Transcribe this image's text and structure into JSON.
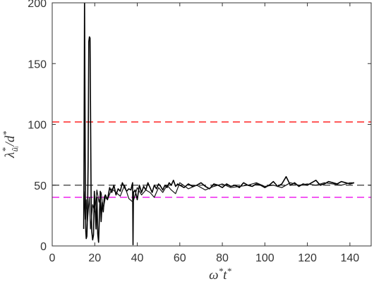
{
  "chart_data": {
    "type": "line",
    "xlabel_main": "ω",
    "xlabel_sup1": "*",
    "xlabel_mid": "t",
    "xlabel_sup2": "*",
    "ylabel_main": "λ",
    "ylabel_sub": "ũᵢ",
    "ylabel_sup": "*",
    "ylabel_rest": "/d",
    "ylabel_sup2": "*",
    "xlim": [
      0,
      150
    ],
    "ylim": [
      0,
      200
    ],
    "xticks": [
      0,
      20,
      40,
      60,
      80,
      100,
      120,
      140
    ],
    "yticks": [
      0,
      50,
      100,
      150,
      200
    ],
    "grid": false,
    "reference_lines": [
      {
        "y": 102,
        "color": "#ff3333",
        "style": "dashed"
      },
      {
        "y": 50,
        "color": "#555555",
        "style": "dashed"
      },
      {
        "y": 40,
        "color": "#ee22ee",
        "style": "dashed"
      }
    ],
    "series": [
      {
        "color": "#000000",
        "x": [
          14.8,
          15.0,
          15.2,
          15.4,
          15.6,
          15.8,
          16.0,
          16.3,
          16.6,
          16.9,
          17.2,
          17.5,
          17.8,
          18.0,
          18.3,
          18.6,
          19.0,
          19.4,
          19.8,
          20.2,
          20.6,
          21.0,
          21.4,
          21.8,
          22.2,
          22.6,
          23.0,
          23.5,
          24.0,
          24.5,
          25.0,
          26.0,
          27.0,
          28.0,
          29.0,
          30.0,
          31.0,
          32.0,
          33.0,
          34.0,
          35.0,
          36.0,
          37.0,
          37.8,
          38.0,
          38.2,
          39.0,
          40.0,
          41.0,
          42.0,
          43.0,
          44.0,
          45.0,
          46.0,
          47.0,
          48.0,
          49.0,
          50.0,
          51.0,
          52.0,
          53.0,
          54.0,
          55.0,
          56.0,
          57.0,
          58.0,
          59.0,
          60.0,
          62.0,
          64.0,
          66.0,
          68.0,
          70.0,
          72.0,
          74.0,
          76.0,
          78.0,
          80.0,
          82.0,
          84.0,
          86.0,
          88.0,
          90.0,
          92.0,
          94.0,
          96.0,
          98.0,
          100.0,
          102.0,
          104.0,
          106.0,
          108.0,
          110.0,
          112.0,
          114.0,
          116.0,
          118.0,
          120.0,
          122.0,
          124.0,
          126.0,
          128.0,
          130.0,
          132.0,
          134.0,
          136.0,
          138.0,
          140.0,
          142.0
        ],
        "y": [
          14,
          90,
          205,
          120,
          40,
          12,
          6,
          8,
          25,
          70,
          168,
          172,
          171,
          120,
          40,
          12,
          5,
          9,
          45,
          30,
          14,
          40,
          10,
          3,
          25,
          45,
          20,
          36,
          28,
          40,
          42,
          38,
          48,
          44,
          50,
          42,
          47,
          45,
          52,
          48,
          45,
          47,
          46,
          52,
          1,
          44,
          46,
          38,
          50,
          44,
          49,
          46,
          52,
          48,
          44,
          50,
          47,
          51,
          49,
          46,
          50,
          48,
          52,
          50,
          54,
          49,
          51,
          50,
          48,
          51,
          49,
          50,
          52,
          49,
          47,
          51,
          50,
          48,
          51,
          49,
          50,
          48,
          52,
          50,
          49,
          51,
          50,
          48,
          50,
          53,
          49,
          51,
          57,
          50,
          52,
          49,
          51,
          50,
          52,
          54,
          50,
          51,
          53,
          52,
          51,
          53,
          52,
          51,
          52
        ]
      },
      {
        "color": "#111111",
        "x": [
          15.0,
          15.5,
          16.0,
          16.5,
          17.0,
          17.5,
          18.0,
          19.0,
          20.0,
          21.0,
          22.0,
          23.0,
          24.0,
          25.0,
          26.0,
          28.0,
          30.0,
          32.0,
          34.0,
          36.0,
          38.0,
          40.0,
          42.0,
          44.0,
          46.0,
          48.0,
          50.0,
          52.0,
          54.0,
          56.0,
          58.0,
          60.0,
          64.0,
          68.0,
          72.0,
          76.0,
          80.0,
          84.0,
          88.0,
          92.0,
          96.0,
          100.0,
          104.0,
          108.0,
          112.0,
          116.0,
          120.0,
          124.0,
          128.0,
          132.0,
          136.0,
          140.0,
          142.0
        ],
        "y": [
          45,
          22,
          38,
          18,
          30,
          40,
          14,
          34,
          28,
          46,
          36,
          44,
          30,
          40,
          38,
          47,
          44,
          41,
          50,
          39,
          36,
          48,
          42,
          46,
          44,
          40,
          48,
          44,
          50,
          46,
          43,
          52,
          47,
          50,
          46,
          49,
          51,
          48,
          49,
          50,
          52,
          49,
          50,
          48,
          52,
          50,
          51,
          50,
          52,
          51,
          50,
          52,
          52
        ]
      }
    ]
  }
}
